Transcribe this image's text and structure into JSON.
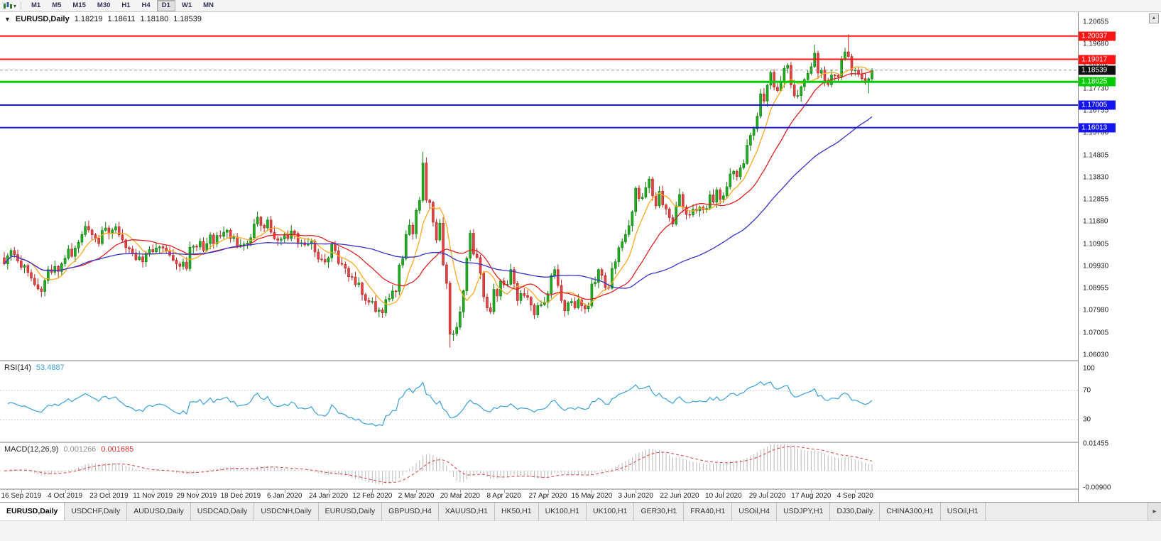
{
  "toolbar": {
    "timeframes": [
      "M1",
      "M5",
      "M15",
      "M30",
      "H1",
      "H4",
      "D1",
      "W1",
      "MN"
    ],
    "active_timeframe": "D1"
  },
  "icons": {
    "toolbar_caret": "▾",
    "title_caret": "▼",
    "axis_scroll": "▲",
    "tab_scroll": "▸"
  },
  "chart_header": {
    "symbol": "EURUSD,Daily",
    "open": "1.18219",
    "high": "1.18611",
    "low": "1.18180",
    "close": "1.18539"
  },
  "price_axis": {
    "current_price": "1.18539",
    "ticks": [
      "1.20655",
      "1.19680",
      "1.18705",
      "1.17730",
      "1.16755",
      "1.15780",
      "1.14805",
      "1.13830",
      "1.12855",
      "1.11880",
      "1.10905",
      "1.09930",
      "1.08955",
      "1.07980",
      "1.07005",
      "1.06030"
    ]
  },
  "hlines": [
    {
      "label": "1.20037",
      "value": 1.20037,
      "color": "#ff1414",
      "width": 2
    },
    {
      "label": "1.19017",
      "value": 1.19017,
      "color": "#ff1414",
      "width": 2
    },
    {
      "label": "1.18025",
      "value": 1.18025,
      "color": "#00cc00",
      "width": 3
    },
    {
      "label": "1.17005",
      "value": 1.17005,
      "color": "#1414ee",
      "width": 2
    },
    {
      "label": "1.16013",
      "value": 1.16013,
      "color": "#1414ee",
      "width": 2
    }
  ],
  "rsi": {
    "label": "RSI(14)",
    "value": "53.4887",
    "period": 14,
    "levels": [
      70,
      30
    ],
    "axis": [
      "100",
      "70",
      "30"
    ],
    "color": "#3aa0dc"
  },
  "macd": {
    "label": "MACD(12,26,9)",
    "value_main": "0.001266",
    "value_signal": "0.001685",
    "fast": 12,
    "slow": 26,
    "signal": 9,
    "axis_top": "0.01455",
    "axis_bottom": "-0.00900",
    "hist_color": "#b8b8b8",
    "signal_color": "#d84040"
  },
  "tabs": {
    "active_index": 0,
    "items": [
      "EURUSD,Daily",
      "USDCHF,Daily",
      "AUDUSD,Daily",
      "USDCAD,Daily",
      "USDCNH,Daily",
      "EURUSD,Daily",
      "GBPUSD,H4",
      "XAUUSD,H1",
      "HK50,H1",
      "UK100,H1",
      "UK100,H1",
      "GER30,H1",
      "FRA40,H1",
      "USOil,H4",
      "USDJPY,H1",
      "DJ30,Daily",
      "CHINA300,H1",
      "USOil,H1"
    ]
  },
  "chart_data": {
    "type": "candlestick",
    "symbol": "EURUSD",
    "timeframe": "Daily",
    "ylim": [
      1.0581,
      1.2109
    ],
    "up_color": "#1fae1f",
    "up_edge": "#0c7a0c",
    "down_color": "#e04545",
    "down_edge": "#b82424",
    "first_open": 1.103,
    "wick_pattern": [
      12,
      22,
      8,
      26,
      15,
      6,
      18,
      10,
      25,
      14
    ],
    "closes": [
      1.1003,
      1.1038,
      1.1062,
      1.1044,
      1.1016,
      1.0988,
      1.0996,
      1.0965,
      1.094,
      1.0912,
      1.0893,
      1.0882,
      1.093,
      1.0978,
      1.0966,
      1.0992,
      1.097,
      1.1004,
      1.1028,
      1.1068,
      1.1036,
      1.1072,
      1.1098,
      1.1132,
      1.1168,
      1.1152,
      1.1131,
      1.1116,
      1.1092,
      1.115,
      1.1161,
      1.1136,
      1.1152,
      1.1166,
      1.113,
      1.1108,
      1.1074,
      1.1068,
      1.1051,
      1.1022,
      1.1034,
      1.1012,
      1.105,
      1.1066,
      1.1056,
      1.1073,
      1.1078,
      1.1072,
      1.1061,
      1.1041,
      1.1019,
      1.1003,
      1.0992,
      1.1011,
      1.0982,
      1.1076,
      1.1081,
      1.1077,
      1.1102,
      1.1062,
      1.1092,
      1.113,
      1.1091,
      1.1128,
      1.1124,
      1.1142,
      1.1151,
      1.1114,
      1.1121,
      1.1079,
      1.1086,
      1.109,
      1.1095,
      1.1118,
      1.1178,
      1.1208,
      1.1172,
      1.1161,
      1.1196,
      1.1142,
      1.1114,
      1.1107,
      1.1112,
      1.1128,
      1.1114,
      1.1148,
      1.1137,
      1.1092,
      1.1096,
      1.1086,
      1.1091,
      1.1102,
      1.1055,
      1.1024,
      1.1022,
      1.1011,
      1.103,
      1.1091,
      1.1061,
      1.1005,
      1.1001,
      1.0984,
      1.0947,
      1.0946,
      1.0912,
      1.0919,
      1.0868,
      1.0842,
      1.0835,
      1.0838,
      1.0794,
      1.0801,
      1.0788,
      1.0846,
      1.0851,
      1.0884,
      1.0882,
      1.0998,
      1.1026,
      1.1132,
      1.1173,
      1.1135,
      1.1238,
      1.1282,
      1.1446,
      1.1283,
      1.1272,
      1.1186,
      1.1108,
      1.1182,
      1.0999,
      1.0918,
      1.0694,
      1.0696,
      1.0725,
      1.0792,
      1.0885,
      1.1028,
      1.1138,
      1.1046,
      1.1031,
      1.0962,
      1.0858,
      1.081,
      1.0793,
      1.0891,
      1.0862,
      1.0928,
      1.0911,
      1.0913,
      1.0978,
      1.0917,
      1.0842,
      1.0873,
      1.0864,
      1.0856,
      1.0822,
      1.0779,
      1.082,
      1.0824,
      1.0833,
      1.0872,
      1.0952,
      1.0978,
      1.0908,
      1.0842,
      1.0797,
      1.0832,
      1.0838,
      1.081,
      1.0845,
      1.0819,
      1.0806,
      1.0818,
      1.0915,
      1.0922,
      1.0978,
      1.0952,
      1.0899,
      1.0896,
      1.0983,
      1.1012,
      1.1074,
      1.11,
      1.1132,
      1.1171,
      1.1232,
      1.1335,
      1.129,
      1.1296,
      1.1338,
      1.1376,
      1.1302,
      1.1258,
      1.1322,
      1.1262,
      1.1244,
      1.1206,
      1.1178,
      1.1258,
      1.1308,
      1.1252,
      1.122,
      1.1218,
      1.1243,
      1.1236,
      1.1252,
      1.1241,
      1.1246,
      1.1306,
      1.1274,
      1.1328,
      1.1286,
      1.1302,
      1.1342,
      1.1398,
      1.141,
      1.1386,
      1.1425,
      1.1444,
      1.1524,
      1.1568,
      1.1596,
      1.1652,
      1.175,
      1.1718,
      1.1788,
      1.1844,
      1.1779,
      1.1764,
      1.1802,
      1.1862,
      1.1875,
      1.1789,
      1.1741,
      1.1742,
      1.1781,
      1.1812,
      1.184,
      1.1869,
      1.1928,
      1.1841,
      1.1855,
      1.1798,
      1.179,
      1.1832,
      1.1831,
      1.1824,
      1.1902,
      1.1934,
      1.1914,
      1.1852,
      1.1854,
      1.1838,
      1.1817,
      1.1802,
      1.1816,
      1.1854
    ],
    "spikes": [
      {
        "i": 112,
        "l": 1.0777
      },
      {
        "i": 124,
        "h": 1.1495
      },
      {
        "i": 132,
        "l": 1.0636
      },
      {
        "i": 133,
        "l": 1.0665
      },
      {
        "i": 240,
        "h": 1.1966
      },
      {
        "i": 250,
        "h": 1.2011
      },
      {
        "i": 256,
        "l": 1.1752
      }
    ],
    "moving_averages": [
      {
        "name": "ma-fast-line",
        "period": 8,
        "color": "#ffa820"
      },
      {
        "name": "ma-medium-line",
        "period": 21,
        "color": "#e02020"
      },
      {
        "name": "ma-slow-line",
        "period": 55,
        "color": "#3434cc"
      }
    ],
    "date_labels": [
      "16 Sep 2019",
      "4 Oct 2019",
      "23 Oct 2019",
      "11 Nov 2019",
      "29 Nov 2019",
      "18 Dec 2019",
      "6 Jan 2020",
      "24 Jan 2020",
      "12 Feb 2020",
      "2 Mar 2020",
      "20 Mar 2020",
      "8 Apr 2020",
      "27 Apr 2020",
      "15 May 2020",
      "3 Jun 2020",
      "22 Jun 2020",
      "10 Jul 2020",
      "29 Jul 2020",
      "17 Aug 2020",
      "4 Sep 2020"
    ],
    "date_first_index": 5,
    "date_step": 13
  }
}
